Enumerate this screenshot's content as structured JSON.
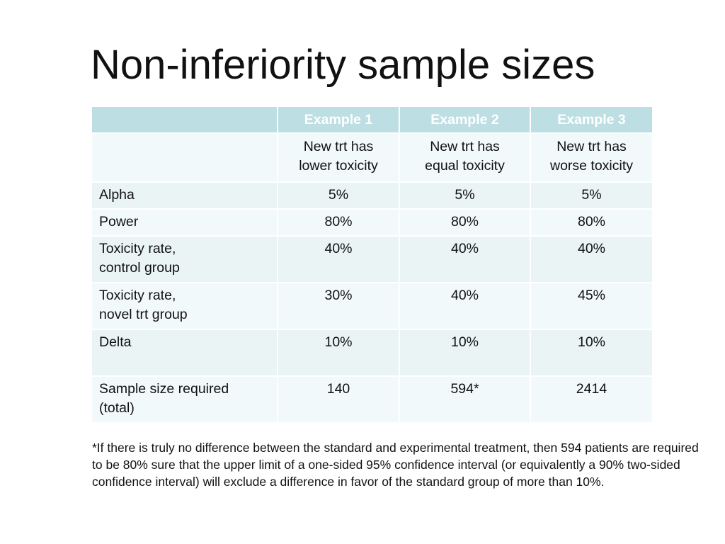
{
  "title": "Non-inferiority sample sizes",
  "table": {
    "headers": [
      "",
      "Example 1",
      "Example 2",
      "Example 3"
    ],
    "description_row": {
      "label": "",
      "cells": [
        [
          "New trt has",
          "lower toxicity"
        ],
        [
          "New trt has",
          "equal toxicity"
        ],
        [
          "New trt has",
          "worse toxicity"
        ]
      ]
    },
    "rows": [
      {
        "label": [
          "Alpha"
        ],
        "values": [
          "5%",
          "5%",
          "5%"
        ]
      },
      {
        "label": [
          "Power"
        ],
        "values": [
          "80%",
          "80%",
          "80%"
        ]
      },
      {
        "label": [
          "Toxicity rate,",
          "control group"
        ],
        "values": [
          "40%",
          "40%",
          "40%"
        ]
      },
      {
        "label": [
          "Toxicity rate,",
          "novel trt group"
        ],
        "values": [
          "30%",
          "40%",
          "45%"
        ]
      },
      {
        "label": [
          "Delta"
        ],
        "values": [
          "10%",
          "10%",
          "10%"
        ]
      },
      {
        "label": [
          "Sample size required",
          "(total)"
        ],
        "values": [
          "140",
          "594*",
          "2414"
        ]
      }
    ]
  },
  "footnote": "*If there is truly no difference between the standard and experimental treatment, then 594 patients are required to be 80% sure that the upper limit of a one-sided 95% confidence interval (or equivalently a 90% two-sided confidence interval) will exclude a difference in favor of the standard group of more than 10%.",
  "colors": {
    "header_bg": "#bddfe3",
    "row_bg_light": "#f2f9fa",
    "row_bg_alt": "#eaf4f5",
    "header_text": "#ffffff"
  }
}
